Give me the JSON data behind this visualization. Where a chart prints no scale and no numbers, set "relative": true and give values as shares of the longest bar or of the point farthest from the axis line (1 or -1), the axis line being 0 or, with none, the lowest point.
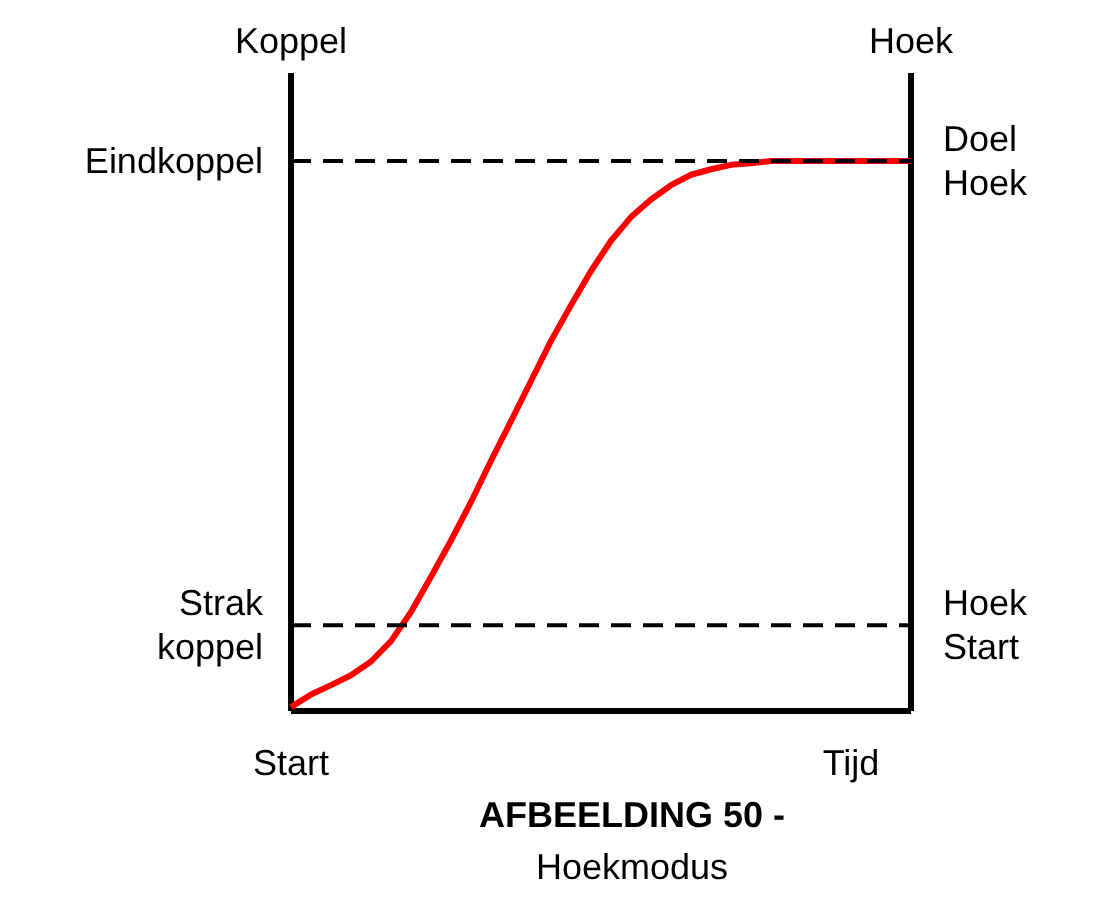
{
  "chart_data": {
    "type": "line",
    "relative": true,
    "title": "AFBEELDING 50 -",
    "subtitle": "Hoekmodus",
    "ylabel": "Koppel",
    "y2label": "Hoek",
    "xlabel": "Tijd",
    "annotations": [
      "Start",
      "Doel Hoek",
      "Hoek Start"
    ],
    "categories": [
      null,
      null,
      null,
      null,
      null,
      null,
      null,
      null,
      null,
      null,
      null,
      null,
      null,
      null,
      null,
      null,
      null,
      null,
      null,
      null,
      null,
      null,
      null,
      null,
      null,
      null,
      null,
      null,
      null,
      null,
      null,
      null
    ],
    "series": [
      {
        "color": "#ff0000",
        "values": [
          0.007,
          0.03,
          0.047,
          0.065,
          0.09,
          0.127,
          0.18,
          0.244,
          0.31,
          0.38,
          0.455,
          0.527,
          0.6,
          0.673,
          0.738,
          0.8,
          0.855,
          0.898,
          0.93,
          0.956,
          0.975,
          0.985,
          0.993,
          0.996,
          1,
          1,
          1,
          1,
          1,
          1,
          1,
          1
        ]
      }
    ],
    "ref_lines": [
      {
        "axis": "y",
        "value": 1,
        "label": "Eindkoppel",
        "line_style": "dashed",
        "color": "#000000"
      },
      {
        "axis": "y",
        "value": 0.156,
        "label": "Strak koppel",
        "line_style": "dashed",
        "color": "#000000"
      }
    ],
    "grid": false,
    "marker": "none",
    "line_style": "solid"
  }
}
